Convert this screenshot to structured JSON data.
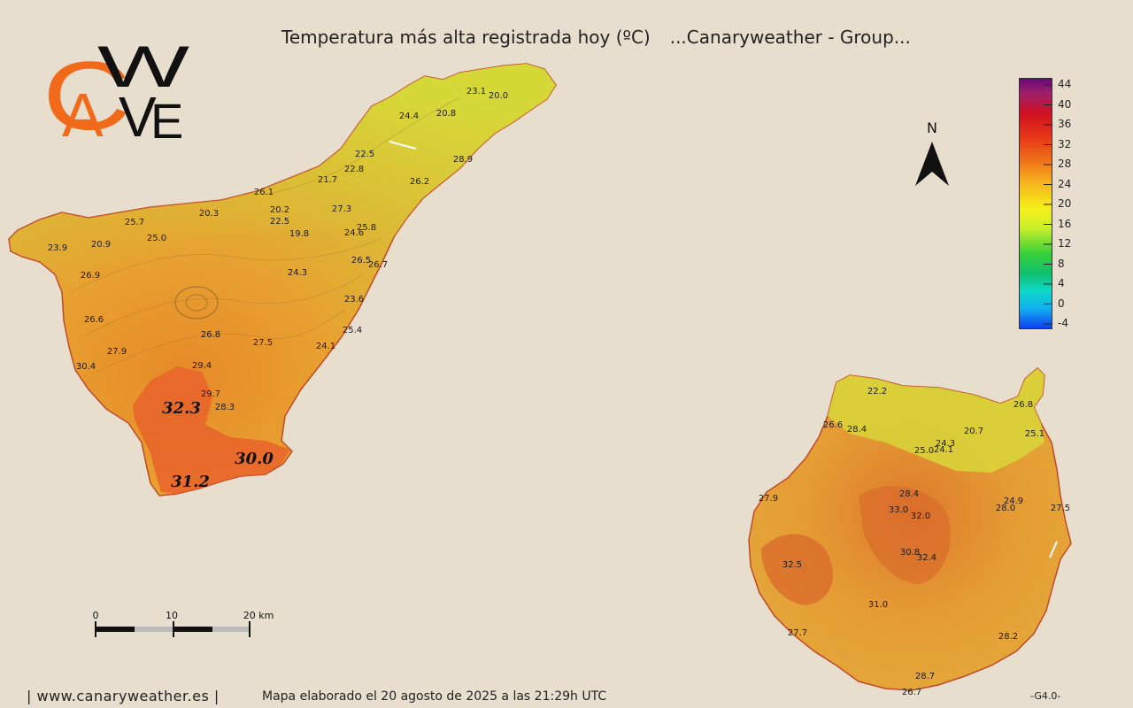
{
  "title": {
    "main": "Temperatura más alta registrada hoy (ºC)",
    "source": "...Canaryweather - Group..."
  },
  "logo": {
    "letters_orange": "CA",
    "letters_black": "WE",
    "colors": {
      "orange": "#f06a1a",
      "black": "#111111"
    }
  },
  "legend": {
    "ticks": [
      "44",
      "40",
      "36",
      "32",
      "28",
      "24",
      "20",
      "16",
      "12",
      "8",
      "4",
      "0",
      "-4"
    ],
    "colors": [
      "#6a0a7a",
      "#d01020",
      "#e83a18",
      "#f07a1a",
      "#f6b61c",
      "#f6f01a",
      "#c8ee2a",
      "#38d038",
      "#10c070",
      "#10d8c8",
      "#10b0f0",
      "#1040f0"
    ]
  },
  "compass": {
    "label": "N"
  },
  "scale_bar": {
    "labels": [
      "0",
      "10",
      "20 km"
    ]
  },
  "islands": {
    "tenerife": {
      "stations": [
        {
          "value": "23.1"
        },
        {
          "value": "20.0"
        },
        {
          "value": "24.4"
        },
        {
          "value": "20.8"
        },
        {
          "value": "22.5"
        },
        {
          "value": "28.9"
        },
        {
          "value": "22.8"
        },
        {
          "value": "21.7"
        },
        {
          "value": "26.2"
        },
        {
          "value": "26.1"
        },
        {
          "value": "27.3"
        },
        {
          "value": "20.2"
        },
        {
          "value": "22.5"
        },
        {
          "value": "20.3"
        },
        {
          "value": "25.7"
        },
        {
          "value": "25.0"
        },
        {
          "value": "19.8"
        },
        {
          "value": "24.6"
        },
        {
          "value": "25.8"
        },
        {
          "value": "20.9"
        },
        {
          "value": "23.9"
        },
        {
          "value": "26.5"
        },
        {
          "value": "26.7"
        },
        {
          "value": "26.9"
        },
        {
          "value": "24.3"
        },
        {
          "value": "23.6"
        },
        {
          "value": "26.6"
        },
        {
          "value": "26.8"
        },
        {
          "value": "27.5"
        },
        {
          "value": "25.4"
        },
        {
          "value": "24.1"
        },
        {
          "value": "27.9"
        },
        {
          "value": "30.4"
        },
        {
          "value": "29.4"
        },
        {
          "value": "29.7"
        },
        {
          "value": "28.3"
        }
      ],
      "highlights": [
        {
          "value": "32.3"
        },
        {
          "value": "30.0"
        },
        {
          "value": "31.2"
        }
      ]
    },
    "gran_canaria": {
      "stations": [
        {
          "value": "22.2"
        },
        {
          "value": "26.8"
        },
        {
          "value": "26.6"
        },
        {
          "value": "28.4"
        },
        {
          "value": "20.7"
        },
        {
          "value": "25.1"
        },
        {
          "value": "24.3"
        },
        {
          "value": "25.0"
        },
        {
          "value": "24.1"
        },
        {
          "value": "27.9"
        },
        {
          "value": "28.4"
        },
        {
          "value": "24.9"
        },
        {
          "value": "33.0"
        },
        {
          "value": "32.0"
        },
        {
          "value": "28.0"
        },
        {
          "value": "27.5"
        },
        {
          "value": "30.8"
        },
        {
          "value": "32.4"
        },
        {
          "value": "32.5"
        },
        {
          "value": "31.0"
        },
        {
          "value": "27.7"
        },
        {
          "value": "28.2"
        },
        {
          "value": "28.7"
        },
        {
          "value": "26.7"
        }
      ]
    }
  },
  "footer": {
    "website": "| www.canaryweather.es |",
    "generated": "Mapa elaborado el 20 agosto de 2025 a las 21:29h UTC",
    "code": "-G4.0-"
  }
}
